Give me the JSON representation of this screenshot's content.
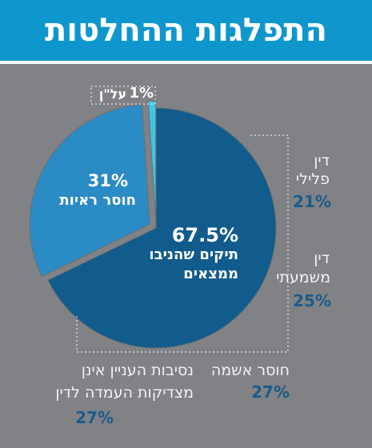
{
  "header": {
    "title": "התפלגות ההחלטות"
  },
  "chart_data": {
    "type": "pie",
    "title": "התפלגות ההחלטות",
    "slices": [
      {
        "label": "תיקים שהניבו ממצאים",
        "value": 67.5,
        "display": "67.5%",
        "color": "#125b8d"
      },
      {
        "label": "חוסר ראיות",
        "value": 31,
        "display": "31%",
        "color": "#2b8bc4"
      },
      {
        "label": "על\"ן",
        "value": 1,
        "display": "1%",
        "color": "#3ec6e4"
      }
    ],
    "breakdown": [
      {
        "label": "דין פלילי",
        "display": "21%"
      },
      {
        "label": "דין משמעתי",
        "display": "25%"
      },
      {
        "label": "חוסר אשמה",
        "display": "27%"
      },
      {
        "label": "נסיבות העניין אינן מצדיקות העמדה לדין",
        "display": "27%"
      }
    ]
  },
  "labels": {
    "main_pct": "67.5%",
    "main_line1": "תיקים שהניבו",
    "main_line2": "ממצאים",
    "lack_pct": "31%",
    "lack_text": "חוסר ראיות",
    "small_pct": "1%",
    "small_text": "על\"ן",
    "criminal_line1": "דין",
    "criminal_line2": "פלילי",
    "criminal_pct": "21%",
    "disc_line1": "דין",
    "disc_line2": "משמעתי",
    "disc_pct": "25%",
    "guilt_text": "חוסר אשמה",
    "guilt_pct": "27%",
    "circ_line1": "נסיבות העניין אינן",
    "circ_line2": "מצדיקות העמדה לדין",
    "circ_pct": "27%"
  }
}
